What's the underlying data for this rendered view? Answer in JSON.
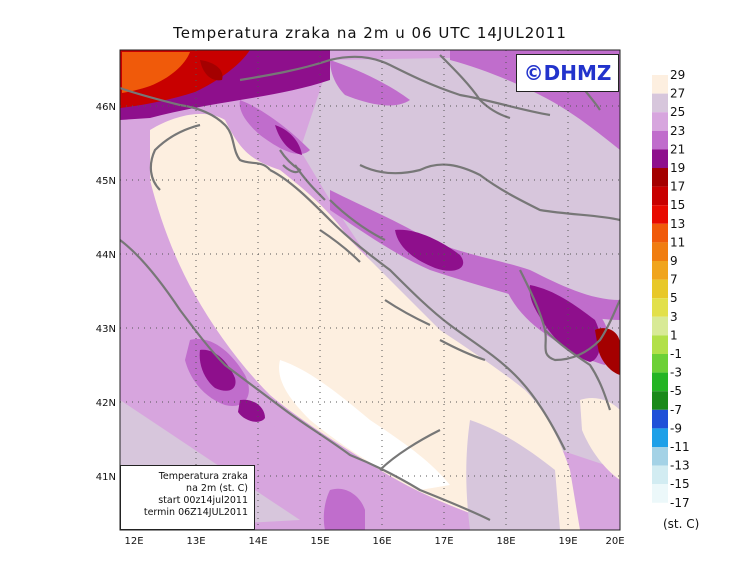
{
  "title": "Temperatura zraka na 2m u 06 UTC 14JUL2011",
  "logo_text": "©DHMZ",
  "info_box": {
    "line1": "Temperatura zraka",
    "line2": "na 2m (st. C)",
    "line3": "start 00z14jul2011",
    "line4": "termin 06Z14JUL2011"
  },
  "lat_labels": [
    "46N",
    "45N",
    "44N",
    "43N",
    "42N",
    "41N"
  ],
  "lon_labels": [
    "12E",
    "13E",
    "14E",
    "15E",
    "16E",
    "17E",
    "18E",
    "19E",
    "20E"
  ],
  "legend": {
    "unit": "(st. C)",
    "labels": [
      "29",
      "27",
      "25",
      "23",
      "21",
      "19",
      "17",
      "15",
      "13",
      "11",
      "9",
      "7",
      "5",
      "3",
      "1",
      "-1",
      "-3",
      "-5",
      "-7",
      "-9",
      "-11",
      "-13",
      "-15",
      "-17"
    ],
    "colors": [
      "#fdefe0",
      "#d7c6dc",
      "#d7a5de",
      "#c06dcc",
      "#8e0f8c",
      "#a40000",
      "#c80000",
      "#e80a00",
      "#f05a0a",
      "#f07d10",
      "#f0a51e",
      "#e8c828",
      "#e2e04a",
      "#d8ea96",
      "#b2e048",
      "#6cd036",
      "#24b424",
      "#1a8a1a",
      "#2050d8",
      "#1ea0e8",
      "#a4d2e6",
      "#d2ecf2",
      "#ecf8fa"
    ]
  },
  "colors": {
    "land_outline": "#777777",
    "sea": "#fdefe0",
    "warm_purple": "#c06dcc",
    "hot_magenta": "#8e0f8c",
    "hot_red": "#c80000"
  }
}
